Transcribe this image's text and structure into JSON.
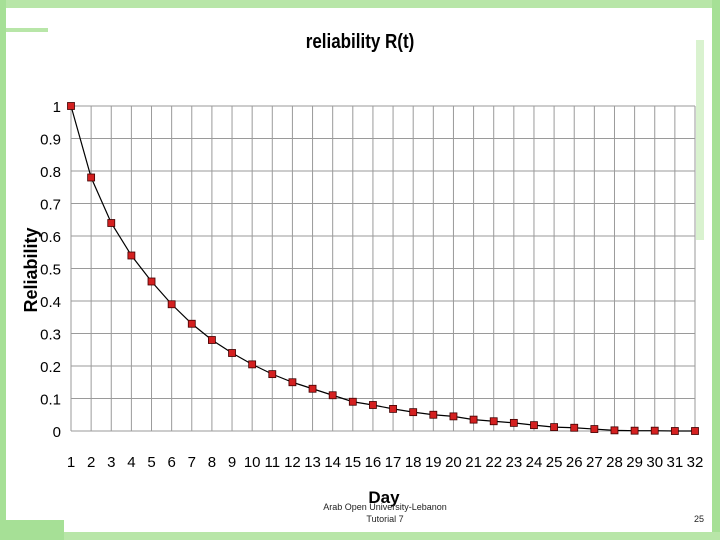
{
  "footer": {
    "organization": "Arab Open University-Lebanon",
    "subtitle": "Tutorial 7",
    "page_number": "25"
  },
  "chart_data": {
    "type": "line",
    "title": "reliability R(t)",
    "xlabel": "Day",
    "ylabel": "Reliability",
    "x": [
      1,
      2,
      3,
      4,
      5,
      6,
      7,
      8,
      9,
      10,
      11,
      12,
      13,
      14,
      15,
      16,
      17,
      18,
      19,
      20,
      21,
      22,
      23,
      24,
      25,
      26,
      27,
      28,
      29,
      30,
      31,
      32
    ],
    "series": [
      {
        "values": [
          1.0,
          0.78,
          0.64,
          0.54,
          0.46,
          0.39,
          0.33,
          0.28,
          0.24,
          0.205,
          0.175,
          0.15,
          0.13,
          0.11,
          0.09,
          0.08,
          0.068,
          0.058,
          0.05,
          0.045,
          0.035,
          0.03,
          0.025,
          0.018,
          0.012,
          0.01,
          0.006,
          0.002,
          0.001,
          0.001,
          0.0,
          0.0
        ],
        "color": "#d42020",
        "line_color": "#000000",
        "marker": "square"
      }
    ],
    "ylim": [
      0,
      1
    ],
    "yticks": [
      "0",
      "0.1",
      "0.2",
      "0.3",
      "0.4",
      "0.5",
      "0.6",
      "0.7",
      "0.8",
      "0.9",
      "1"
    ],
    "xticks": [
      "1",
      "2",
      "3",
      "4",
      "5",
      "6",
      "7",
      "8",
      "9",
      "10",
      "11",
      "12",
      "13",
      "14",
      "15",
      "16",
      "17",
      "18",
      "19",
      "20",
      "21",
      "22",
      "23",
      "24",
      "25",
      "26",
      "27",
      "28",
      "29",
      "30",
      "31",
      "32"
    ],
    "grid": true,
    "legend": "none"
  }
}
